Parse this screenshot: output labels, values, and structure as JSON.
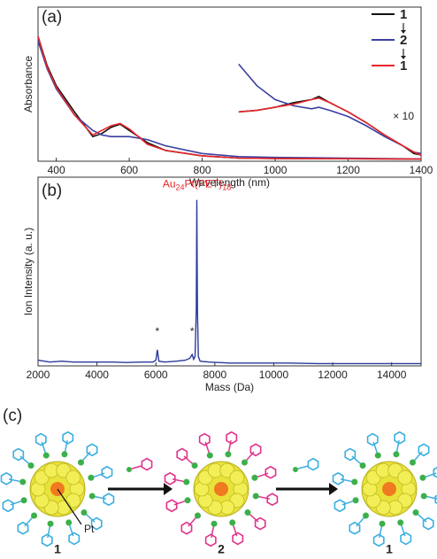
{
  "panel_labels": [
    "(a)",
    "(b)",
    "(c)"
  ],
  "chart_data": [
    {
      "type": "line",
      "xlabel": "Wavelength (nm)",
      "ylabel": "Absorbance",
      "x": [
        350,
        375,
        400,
        450,
        500,
        525,
        550,
        575,
        600,
        650,
        700,
        800,
        900,
        1000,
        1200,
        1400
      ],
      "inset_x": [
        900,
        950,
        1000,
        1050,
        1100,
        1120,
        1150,
        1200,
        1250,
        1300,
        1350,
        1380,
        1400
      ],
      "series": [
        {
          "name": "1",
          "color": "#111111",
          "values": [
            0.81,
            0.62,
            0.49,
            0.32,
            0.16,
            0.18,
            0.22,
            0.24,
            0.2,
            0.12,
            0.07,
            0.035,
            0.02,
            0.018,
            0.016,
            0.014
          ],
          "inset_values": [
            0.32,
            0.33,
            0.35,
            0.38,
            0.4,
            0.42,
            0.38,
            0.32,
            0.25,
            0.17,
            0.1,
            0.05,
            0.04
          ]
        },
        {
          "name": "2",
          "color": "#3a3fa0",
          "values": [
            0.78,
            0.6,
            0.47,
            0.3,
            0.2,
            0.17,
            0.16,
            0.16,
            0.16,
            0.14,
            0.1,
            0.05,
            0.03,
            0.025,
            0.02,
            0.015
          ],
          "inset_values": [
            0.63,
            0.49,
            0.4,
            0.36,
            0.34,
            0.35,
            0.33,
            0.29,
            0.23,
            0.16,
            0.1,
            0.06,
            0.05
          ]
        },
        {
          "name": "1",
          "color": "#e8262a",
          "values": [
            0.81,
            0.61,
            0.48,
            0.3,
            0.17,
            0.2,
            0.23,
            0.245,
            0.21,
            0.11,
            0.07,
            0.035,
            0.02,
            0.018,
            0.016,
            0.014
          ],
          "inset_values": [
            0.32,
            0.33,
            0.35,
            0.37,
            0.4,
            0.41,
            0.38,
            0.32,
            0.25,
            0.17,
            0.1,
            0.06,
            0.04
          ]
        }
      ],
      "inset_annotation": "× 10",
      "xlim": [
        350,
        1400
      ],
      "xticks": [
        400,
        600,
        800,
        1000,
        1200,
        1400
      ],
      "ylim": [
        0,
        1
      ]
    },
    {
      "type": "line",
      "xlabel": "Mass (Da)",
      "ylabel": "Ion Intensity (a. u.)",
      "color": "#2b3a9a",
      "x": [
        2000,
        2400,
        2800,
        3200,
        3600,
        4000,
        4500,
        5000,
        5500,
        5900,
        6000,
        6050,
        6100,
        6300,
        6700,
        7000,
        7150,
        7230,
        7280,
        7330,
        7370,
        7390,
        7410,
        7440,
        7500,
        7800,
        8500,
        9500,
        10500,
        11500,
        12500,
        13500,
        14500,
        15000
      ],
      "values": [
        0.03,
        0.02,
        0.025,
        0.02,
        0.02,
        0.02,
        0.02,
        0.018,
        0.02,
        0.02,
        0.03,
        0.085,
        0.025,
        0.02,
        0.025,
        0.03,
        0.04,
        0.06,
        0.035,
        0.05,
        0.3,
        0.88,
        0.3,
        0.05,
        0.025,
        0.02,
        0.015,
        0.015,
        0.015,
        0.012,
        0.012,
        0.012,
        0.012,
        0.012
      ],
      "peak_annotation": [
        "Au",
        "24",
        "Pt(PET)",
        "18"
      ],
      "markers": [
        {
          "label": "*",
          "x": 6050
        },
        {
          "label": "*",
          "x": 7230
        }
      ],
      "xlim": [
        2000,
        15000
      ],
      "xticks": [
        2000,
        4000,
        6000,
        8000,
        10000,
        12000,
        14000
      ],
      "ylim": [
        0,
        1
      ]
    }
  ],
  "diagram": {
    "cluster_labels": [
      "1",
      "2",
      "1"
    ],
    "pt_label": "Pt"
  }
}
